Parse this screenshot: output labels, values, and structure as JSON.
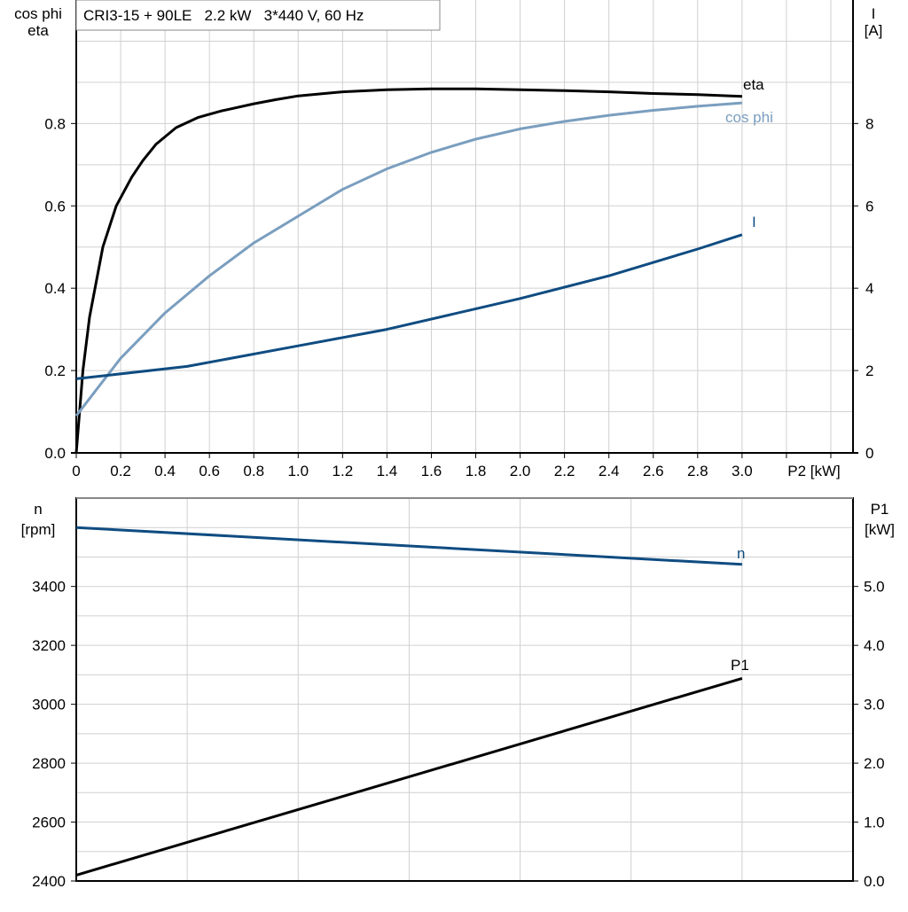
{
  "chart_data": [
    {
      "type": "line",
      "title": "CRI3-15 + 90LE   2.2 kW   3*440 V, 60 Hz",
      "xlabel": "P2 [kW]",
      "ylabel_left": [
        "cos phi",
        "eta"
      ],
      "ylabel_right": [
        "I",
        "[A]"
      ],
      "xlim": [
        0,
        3.5
      ],
      "ylim_left": [
        0,
        1.1
      ],
      "ylim_right": [
        0,
        11
      ],
      "x_ticks": [
        "0",
        "0.2",
        "0.4",
        "0.6",
        "0.8",
        "1.0",
        "1.2",
        "1.4",
        "1.6",
        "1.8",
        "2.0",
        "2.2",
        "2.4",
        "2.6",
        "2.8",
        "3.0"
      ],
      "y_ticks_left": [
        "0.0",
        "0.2",
        "0.4",
        "0.6",
        "0.8"
      ],
      "y_ticks_right": [
        "0",
        "2",
        "4",
        "6",
        "8"
      ],
      "grid": true,
      "series": [
        {
          "name": "eta",
          "axis": "left",
          "color": "#000000",
          "x": [
            0,
            0.03,
            0.06,
            0.12,
            0.18,
            0.25,
            0.3,
            0.36,
            0.45,
            0.55,
            0.65,
            0.8,
            0.9,
            1.0,
            1.2,
            1.4,
            1.6,
            1.8,
            2.0,
            2.2,
            2.4,
            2.6,
            2.8,
            3.0
          ],
          "y": [
            0,
            0.2,
            0.33,
            0.5,
            0.6,
            0.67,
            0.71,
            0.75,
            0.79,
            0.815,
            0.83,
            0.848,
            0.858,
            0.867,
            0.877,
            0.882,
            0.884,
            0.884,
            0.882,
            0.88,
            0.877,
            0.873,
            0.87,
            0.866
          ]
        },
        {
          "name": "cos phi",
          "axis": "left",
          "color": "#7a9ebf",
          "x": [
            0,
            0.1,
            0.2,
            0.4,
            0.6,
            0.8,
            1.0,
            1.2,
            1.4,
            1.6,
            1.8,
            2.0,
            2.2,
            2.4,
            2.6,
            2.8,
            3.0
          ],
          "y": [
            0.09,
            0.16,
            0.23,
            0.34,
            0.43,
            0.51,
            0.575,
            0.64,
            0.69,
            0.73,
            0.762,
            0.787,
            0.805,
            0.82,
            0.832,
            0.842,
            0.85
          ]
        },
        {
          "name": "I",
          "axis": "right",
          "color": "#0f4c81",
          "x": [
            0,
            0.5,
            1.0,
            1.4,
            1.8,
            2.0,
            2.4,
            2.8,
            3.0
          ],
          "y": [
            1.8,
            2.1,
            2.6,
            3.0,
            3.5,
            3.75,
            4.3,
            4.95,
            5.3
          ]
        }
      ]
    },
    {
      "type": "line",
      "ylabel_left": [
        "n",
        "[rpm]"
      ],
      "ylabel_right": [
        "P1",
        "[kW]"
      ],
      "xlim": [
        0,
        3.5
      ],
      "ylim_left": [
        2400,
        3700
      ],
      "ylim_right": [
        0,
        6.5
      ],
      "y_ticks_left": [
        "2400",
        "2600",
        "2800",
        "3000",
        "3200",
        "3400"
      ],
      "y_ticks_right": [
        "0.0",
        "1.0",
        "2.0",
        "3.0",
        "4.0",
        "5.0"
      ],
      "grid": true,
      "series": [
        {
          "name": "n",
          "axis": "left",
          "color": "#0f4c81",
          "x": [
            0,
            3.0
          ],
          "y": [
            3600,
            3475
          ]
        },
        {
          "name": "P1",
          "axis": "right",
          "color": "#000000",
          "x": [
            0,
            3.0
          ],
          "y": [
            0.1,
            3.44
          ]
        }
      ]
    }
  ]
}
